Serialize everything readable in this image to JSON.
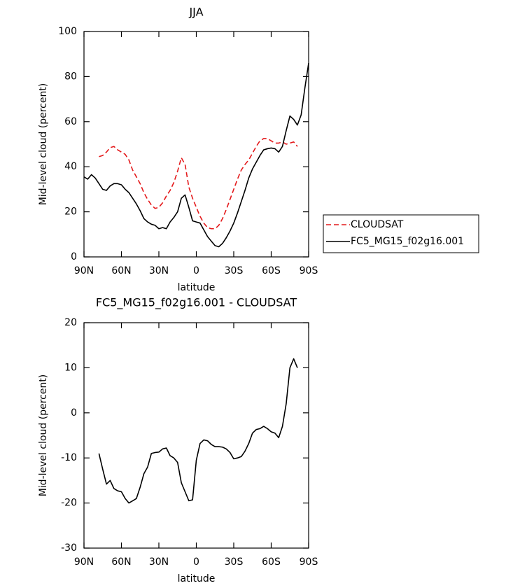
{
  "chart_data": [
    {
      "type": "line",
      "title": "JJA",
      "xlabel": "latitude",
      "ylabel": "Mid-level cloud (percent)",
      "x": [
        90,
        87,
        84,
        81,
        78,
        75,
        72,
        69,
        66,
        63,
        60,
        57,
        54,
        51,
        48,
        45,
        42,
        39,
        36,
        33,
        30,
        27,
        24,
        21,
        18,
        15,
        12,
        9,
        6,
        3,
        0,
        -3,
        -6,
        -9,
        -12,
        -15,
        -18,
        -21,
        -24,
        -27,
        -30,
        -33,
        -36,
        -39,
        -42,
        -45,
        -48,
        -51,
        -54,
        -57,
        -60,
        -63,
        -66,
        -69,
        -72,
        -75,
        -78,
        -81,
        -84,
        -87,
        -90
      ],
      "xlim": [
        90,
        -90
      ],
      "xticks": [
        {
          "value": 90,
          "label": "90N"
        },
        {
          "value": 60,
          "label": "60N"
        },
        {
          "value": 30,
          "label": "30N"
        },
        0,
        {
          "value": -30,
          "label": "30S"
        },
        {
          "value": -60,
          "label": "60S"
        },
        {
          "value": -90,
          "label": "90S"
        }
      ],
      "ylim": [
        0,
        100
      ],
      "yticks": [
        0,
        20,
        40,
        60,
        80,
        100
      ],
      "legend": "right",
      "series": [
        {
          "name": "CLOUDSAT",
          "color": "#e41a1c",
          "line_style": "dashed",
          "values": [
            null,
            null,
            null,
            null,
            44.5,
            45,
            46.5,
            48.5,
            49,
            47.5,
            46.5,
            45.5,
            43,
            38.5,
            35.5,
            32.5,
            28.5,
            25.5,
            23,
            21.5,
            22,
            24,
            27,
            29.5,
            33,
            38,
            44,
            41,
            31,
            26,
            22,
            18,
            15,
            13,
            12.5,
            12.5,
            14,
            17,
            21,
            25.5,
            30,
            34.5,
            38.5,
            41,
            43,
            46,
            49,
            51.5,
            52.5,
            52.5,
            51.5,
            50.5,
            50.5,
            51,
            50,
            50.5,
            51,
            49,
            null,
            null,
            null
          ]
        },
        {
          "name": "FC5_MG15_f02g16.001",
          "color": "#000000",
          "line_style": "solid",
          "values": [
            35.5,
            34.5,
            36.5,
            35,
            32.5,
            30,
            29.5,
            31.5,
            32.5,
            32.5,
            32,
            30,
            28.5,
            26,
            23.5,
            20.5,
            17,
            15.5,
            14.5,
            14,
            12.5,
            13,
            12.5,
            15.5,
            17.5,
            20,
            26,
            27.5,
            22,
            16,
            15.5,
            15,
            12,
            9,
            7,
            5,
            4.5,
            6,
            8.5,
            11.5,
            15,
            19.5,
            24.5,
            29.5,
            35,
            39,
            42,
            45,
            47.5,
            48,
            48.3,
            48,
            46.5,
            49,
            56,
            62.5,
            61,
            58.5,
            63,
            75,
            86
          ]
        }
      ]
    },
    {
      "type": "line",
      "title": "FC5_MG15_f02g16.001 - CLOUDSAT",
      "xlabel": "latitude",
      "ylabel": "Mid-level cloud (percent)",
      "x": [
        90,
        87,
        84,
        81,
        78,
        75,
        72,
        69,
        66,
        63,
        60,
        57,
        54,
        51,
        48,
        45,
        42,
        39,
        36,
        33,
        30,
        27,
        24,
        21,
        18,
        15,
        12,
        9,
        6,
        3,
        0,
        -3,
        -6,
        -9,
        -12,
        -15,
        -18,
        -21,
        -24,
        -27,
        -30,
        -33,
        -36,
        -39,
        -42,
        -45,
        -48,
        -51,
        -54,
        -57,
        -60,
        -63,
        -66,
        -69,
        -72,
        -75,
        -78,
        -81,
        -84,
        -87,
        -90
      ],
      "xlim": [
        90,
        -90
      ],
      "xticks": [
        {
          "value": 90,
          "label": "90N"
        },
        {
          "value": 60,
          "label": "60N"
        },
        {
          "value": 30,
          "label": "30N"
        },
        0,
        {
          "value": -30,
          "label": "30S"
        },
        {
          "value": -60,
          "label": "60S"
        },
        {
          "value": -90,
          "label": "90S"
        }
      ],
      "ylim": [
        -30,
        20
      ],
      "yticks": [
        -30,
        -20,
        -10,
        0,
        10,
        20
      ],
      "color": "#000000",
      "values": [
        null,
        null,
        null,
        null,
        -9,
        -12.5,
        -15.8,
        -15,
        -16.8,
        -17.3,
        -17.5,
        -19,
        -20,
        -19.5,
        -19,
        -16.5,
        -13.5,
        -12,
        -9,
        -8.8,
        -8.7,
        -8,
        -7.8,
        -9.5,
        -10,
        -11,
        -15.5,
        -17.5,
        -19.5,
        -19.3,
        -10.5,
        -6.8,
        -6,
        -6.2,
        -7,
        -7.5,
        -7.5,
        -7.6,
        -8,
        -8.8,
        -10.2,
        -10,
        -9.7,
        -8.5,
        -6.8,
        -4.5,
        -3.7,
        -3.5,
        -3,
        -3.5,
        -4.2,
        -4.5,
        -5.5,
        -3,
        2,
        10,
        12,
        10,
        null,
        null,
        null
      ]
    }
  ]
}
